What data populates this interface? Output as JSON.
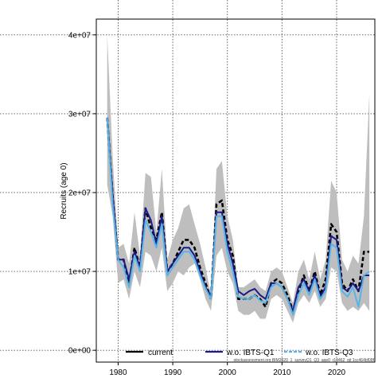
{
  "chart_data": {
    "type": "line",
    "title": "",
    "xlabel": "",
    "ylabel": "Recruits (age 0)",
    "xlim": [
      1976,
      2027
    ],
    "ylim": [
      -1500000,
      42000000
    ],
    "x_ticks": [
      1980,
      1990,
      2000,
      2010,
      2020
    ],
    "x_tick_labels": [
      "1980",
      "1990",
      "2000",
      "2010",
      "2020"
    ],
    "y_ticks": [
      0,
      10000000,
      20000000,
      30000000,
      40000000
    ],
    "y_tick_labels": [
      "0e+00",
      "1e+07",
      "2e+07",
      "3e+07",
      "4e+07"
    ],
    "grid": true,
    "legend": {
      "position": "bottom"
    },
    "footnote": "stockassessment.org BIM2020_1_surveyQ1_Q3_age0_r19462_git 1cc464bf08f",
    "x": [
      1978,
      1979,
      1980,
      1981,
      1982,
      1983,
      1984,
      1985,
      1986,
      1987,
      1988,
      1989,
      1990,
      1991,
      1992,
      1993,
      1994,
      1995,
      1996,
      1997,
      1998,
      1999,
      2000,
      2001,
      2002,
      2003,
      2004,
      2005,
      2006,
      2007,
      2008,
      2009,
      2010,
      2011,
      2012,
      2013,
      2014,
      2015,
      2016,
      2017,
      2018,
      2019,
      2020,
      2021,
      2022,
      2023,
      2024,
      2025,
      2026
    ],
    "band": {
      "name": "confidence band",
      "color": "#bebebe",
      "upper": [
        40000000,
        24500000,
        13000000,
        13500000,
        11000000,
        17500000,
        12000000,
        22500000,
        22000000,
        15000000,
        23000000,
        11500000,
        14000000,
        15500000,
        18000000,
        18500000,
        16000000,
        13500000,
        10500000,
        7000000,
        23000000,
        24000000,
        17000000,
        14000000,
        8000000,
        8000000,
        8500000,
        9000000,
        8000000,
        7500000,
        10000000,
        10500000,
        10000000,
        8000000,
        6000000,
        10000000,
        11500000,
        9000000,
        12500000,
        9000000,
        11500000,
        21500000,
        20000000,
        11500000,
        10000000,
        12000000,
        11000000,
        17000000,
        32500000
      ],
      "lower": [
        21000000,
        17000000,
        8500000,
        9000000,
        6500000,
        10000000,
        8000000,
        12500000,
        12000000,
        10000000,
        13000000,
        7500000,
        8500000,
        10000000,
        9500000,
        10500000,
        11000000,
        9000000,
        6500000,
        5000000,
        12000000,
        13000000,
        10000000,
        8500000,
        5000000,
        4500000,
        4500000,
        5000000,
        4000000,
        4000000,
        6500000,
        7000000,
        6500000,
        5000000,
        3500000,
        6000000,
        7000000,
        6000000,
        7500000,
        5500000,
        6500000,
        10500000,
        10000000,
        6000000,
        5000000,
        5500000,
        5000000,
        6000000,
        5000000
      ]
    },
    "series": [
      {
        "name": "current",
        "color": "#000000",
        "style": "dashed-thick",
        "values": [
          29500000,
          19500000,
          11500000,
          11500000,
          8500000,
          13000000,
          10500000,
          18000000,
          15500000,
          14000000,
          17500000,
          10000000,
          11000000,
          12500000,
          14000000,
          14000000,
          13000000,
          10500000,
          8500000,
          6500000,
          18500000,
          19000000,
          14000000,
          12000000,
          6500000,
          6500000,
          6500000,
          7000000,
          6500000,
          5500000,
          8500000,
          9000000,
          8500000,
          7000000,
          5000000,
          7500000,
          9500000,
          7500000,
          10000000,
          7000000,
          9000000,
          16000000,
          15000000,
          8500000,
          7500000,
          9000000,
          7500000,
          12500000,
          12500000
        ]
      },
      {
        "name": "w.o. IBTS-Q1",
        "color": "#1a1a8a",
        "style": "solid",
        "values": [
          29500000,
          19500000,
          11500000,
          11500000,
          9000000,
          12500000,
          10500000,
          18000000,
          16500000,
          13500000,
          17000000,
          10000000,
          11000000,
          12000000,
          13000000,
          13000000,
          12000000,
          10000000,
          8000000,
          6800000,
          17500000,
          17500000,
          13500000,
          11000000,
          7500000,
          7000000,
          7500000,
          7800000,
          7000000,
          6500000,
          8500000,
          8500000,
          8000000,
          6500000,
          5000000,
          8000000,
          9000000,
          7500000,
          9500000,
          6800000,
          8000000,
          14500000,
          14000000,
          8000000,
          7500000,
          8500000,
          7500000,
          9500000,
          9500000
        ]
      },
      {
        "name": "w.o. IBTS-Q3",
        "color": "#56b4e9",
        "style": "solid",
        "values": [
          29500000,
          18500000,
          11500000,
          10500000,
          8000000,
          12000000,
          10000000,
          16500000,
          15000000,
          13000000,
          16000000,
          9500000,
          10500000,
          11500000,
          12500000,
          12500000,
          11500000,
          9500000,
          7800000,
          6500000,
          17000000,
          17000000,
          12500000,
          10000000,
          6800000,
          6500000,
          6500000,
          7000000,
          6300000,
          6000000,
          8000000,
          8500000,
          8000000,
          6500000,
          4500000,
          7000000,
          8500000,
          7000000,
          9000000,
          6500000,
          7500000,
          13500000,
          13000000,
          7500000,
          6800000,
          8000000,
          5500000,
          9500000,
          10000000
        ]
      }
    ]
  }
}
